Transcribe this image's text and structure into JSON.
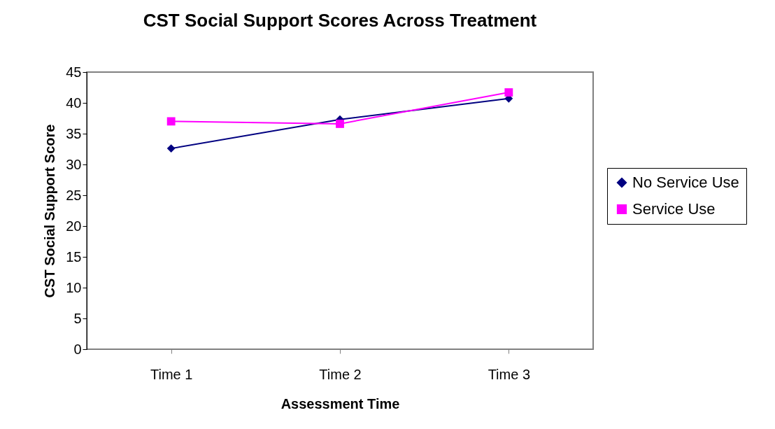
{
  "chart_data": {
    "type": "line",
    "title": "CST Social Support Scores Across Treatment",
    "xlabel": "Assessment Time",
    "ylabel": "CST Social Support Score",
    "categories": [
      "Time 1",
      "Time 2",
      "Time 3"
    ],
    "series": [
      {
        "name": "No Service Use",
        "color": "#000080",
        "marker": "diamond",
        "values": [
          32.6,
          37.3,
          40.7
        ]
      },
      {
        "name": "Service Use",
        "color": "#ff00ff",
        "marker": "square",
        "values": [
          37.0,
          36.6,
          41.7
        ]
      }
    ],
    "ylim": [
      0,
      45
    ],
    "yticks": [
      0,
      5,
      10,
      15,
      20,
      25,
      30,
      35,
      40,
      45
    ],
    "grid": false,
    "legend": "right"
  }
}
